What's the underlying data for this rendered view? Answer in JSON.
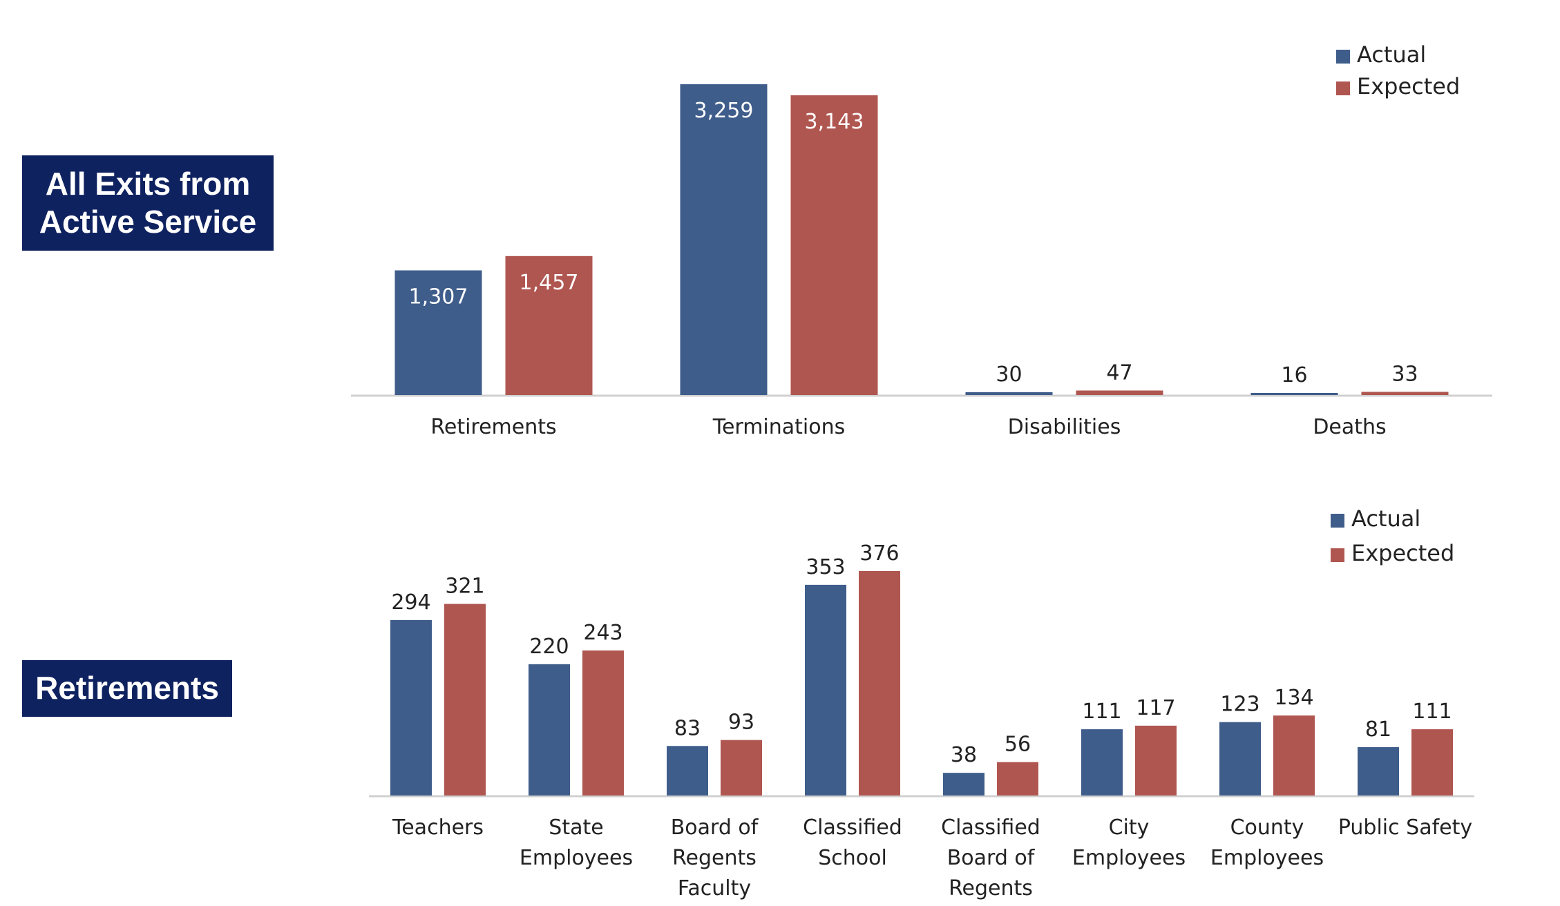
{
  "panels": {
    "exits_label": [
      "All Exits from",
      "Active Service"
    ],
    "retirements_label": "Retirements"
  },
  "colors": {
    "actual": "#3f5d8b",
    "expected": "#b05650",
    "axis": "#d0d0d0",
    "badge": "#0f2260"
  },
  "chart_data": [
    {
      "type": "bar",
      "title": "All Exits from Active Service",
      "categories": [
        "Retirements",
        "Terminations",
        "Disabilities",
        "Deaths"
      ],
      "series": [
        {
          "name": "Actual",
          "values": [
            1307,
            3259,
            30,
            16
          ],
          "labels": [
            "1,307",
            "3,259",
            "30",
            "16"
          ]
        },
        {
          "name": "Expected",
          "values": [
            1457,
            3143,
            47,
            33
          ],
          "labels": [
            "1,457",
            "3,143",
            "47",
            "33"
          ]
        }
      ],
      "ylim": [
        0,
        3259
      ],
      "legend": "top-right",
      "grid": false
    },
    {
      "type": "bar",
      "title": "Retirements",
      "categories": [
        [
          "Teachers"
        ],
        [
          "State",
          "Employees"
        ],
        [
          "Board of",
          "Regents",
          "Faculty"
        ],
        [
          "Classified",
          "School"
        ],
        [
          "Classified",
          "Board of",
          "Regents"
        ],
        [
          "City",
          "Employees"
        ],
        [
          "County",
          "Employees"
        ],
        [
          "Public Safety"
        ]
      ],
      "series": [
        {
          "name": "Actual",
          "values": [
            294,
            220,
            83,
            353,
            38,
            111,
            123,
            81
          ],
          "labels": [
            "294",
            "220",
            "83",
            "353",
            "38",
            "111",
            "123",
            "81"
          ]
        },
        {
          "name": "Expected",
          "values": [
            321,
            243,
            93,
            376,
            56,
            117,
            134,
            111
          ],
          "labels": [
            "321",
            "243",
            "93",
            "376",
            "56",
            "117",
            "134",
            "111"
          ]
        }
      ],
      "ylim": [
        0,
        376
      ],
      "legend": "top-right",
      "grid": false
    }
  ]
}
